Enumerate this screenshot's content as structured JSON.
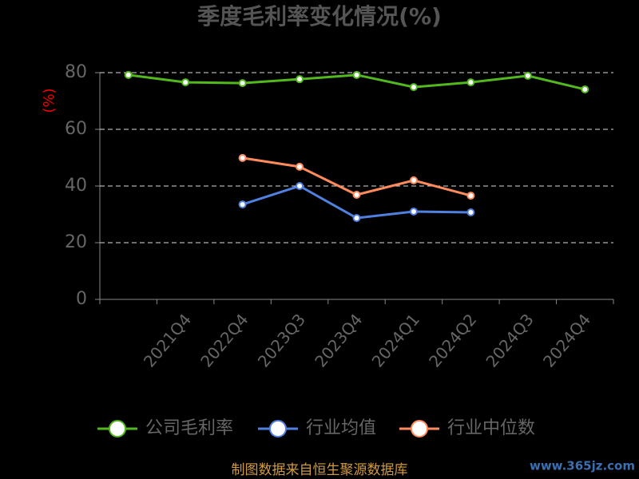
{
  "chart_data": {
    "type": "line",
    "title": "季度毛利率变化情况(%)",
    "y_label": "(%)",
    "categories": [
      null,
      "2021Q4",
      "2022Q4",
      "2023Q3",
      "2023Q4",
      "2024Q1",
      "2024Q2",
      "2024Q3",
      "2024Q4"
    ],
    "series": [
      {
        "name": "公司毛利率",
        "color": "#52b81e",
        "values": [
          79.2,
          76.6,
          76.3,
          77.7,
          79.2,
          74.9,
          76.6,
          78.9,
          74.1
        ]
      },
      {
        "name": "行业均值",
        "color": "#5080e0",
        "values": [
          null,
          null,
          33.5,
          40.0,
          28.7,
          31.0,
          30.7,
          null,
          null
        ]
      },
      {
        "name": "行业中位数",
        "color": "#ff8a5c",
        "values": [
          null,
          null,
          49.9,
          46.8,
          36.9,
          42.0,
          36.6,
          null,
          null
        ]
      }
    ],
    "ylim": [
      0,
      80
    ],
    "yticks": [
      0,
      20,
      40,
      60,
      80
    ],
    "grid": true,
    "legend": "bottom",
    "source": "制图数据来自恒生聚源数据库",
    "watermark": "www.365jz.com"
  }
}
